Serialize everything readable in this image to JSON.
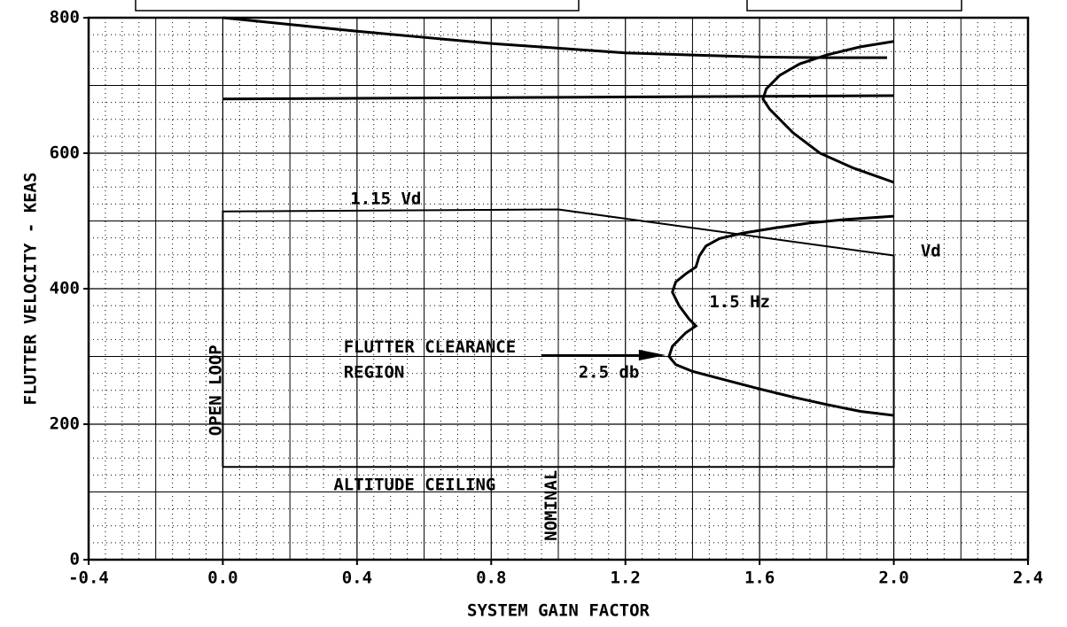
{
  "chart_data": {
    "type": "line",
    "xlabel": "SYSTEM GAIN FACTOR",
    "ylabel": "FLUTTER VELOCITY - KEAS",
    "xlim": [
      -0.4,
      2.4
    ],
    "ylim": [
      0,
      800
    ],
    "xticks": [
      -0.4,
      {
        "value": 0,
        "label": "0.0"
      },
      0.4,
      0.8,
      1.2,
      1.6,
      {
        "value": 2,
        "label": "2.0"
      },
      2.4
    ],
    "yticks": [
      0,
      200,
      400,
      600,
      800
    ],
    "grid": true,
    "color": "#000000",
    "series": [
      {
        "x": [
          0,
          0,
          1.0,
          2.0,
          2.0,
          0
        ],
        "values": [
          137,
          514,
          517,
          449,
          137,
          137
        ]
      },
      {
        "x": [
          0,
          0.2,
          0.4,
          0.6,
          0.8,
          1.0,
          1.2,
          1.4,
          1.6,
          1.8,
          1.98
        ],
        "values": [
          800,
          790,
          780,
          771,
          762,
          755,
          748,
          745,
          742,
          741,
          741
        ]
      },
      {
        "x": [
          2.0,
          1.9,
          1.8,
          1.72,
          1.66,
          1.62,
          1.61,
          1.63,
          1.7,
          1.78,
          1.88,
          2.0
        ],
        "values": [
          765,
          757,
          745,
          732,
          715,
          695,
          680,
          665,
          630,
          600,
          578,
          557
        ]
      },
      {
        "x": [
          0,
          0.4,
          0.8,
          1.2,
          1.6,
          2.0
        ],
        "values": [
          680,
          681,
          682,
          683,
          684,
          685
        ]
      },
      {
        "x": [
          2.0,
          1.85,
          1.75,
          1.65,
          1.55,
          1.48,
          1.44,
          1.42,
          1.41,
          1.38,
          1.35,
          1.34,
          1.36,
          1.39,
          1.41,
          1.38,
          1.34,
          1.33,
          1.35,
          1.4,
          1.5,
          1.6,
          1.7,
          1.8,
          1.9,
          2.0
        ],
        "values": [
          507,
          502,
          497,
          490,
          482,
          474,
          463,
          448,
          432,
          422,
          410,
          395,
          375,
          355,
          345,
          335,
          315,
          300,
          288,
          278,
          265,
          252,
          240,
          229,
          219,
          213
        ]
      }
    ],
    "annotations": [
      "1.15 Vd",
      "Vd",
      "1.5 Hz",
      "FLUTTER CLEARANCE",
      "REGION",
      "2.5 db",
      "ALTITUDE CEILING",
      "OPEN LOOP",
      "NOMINAL"
    ]
  }
}
